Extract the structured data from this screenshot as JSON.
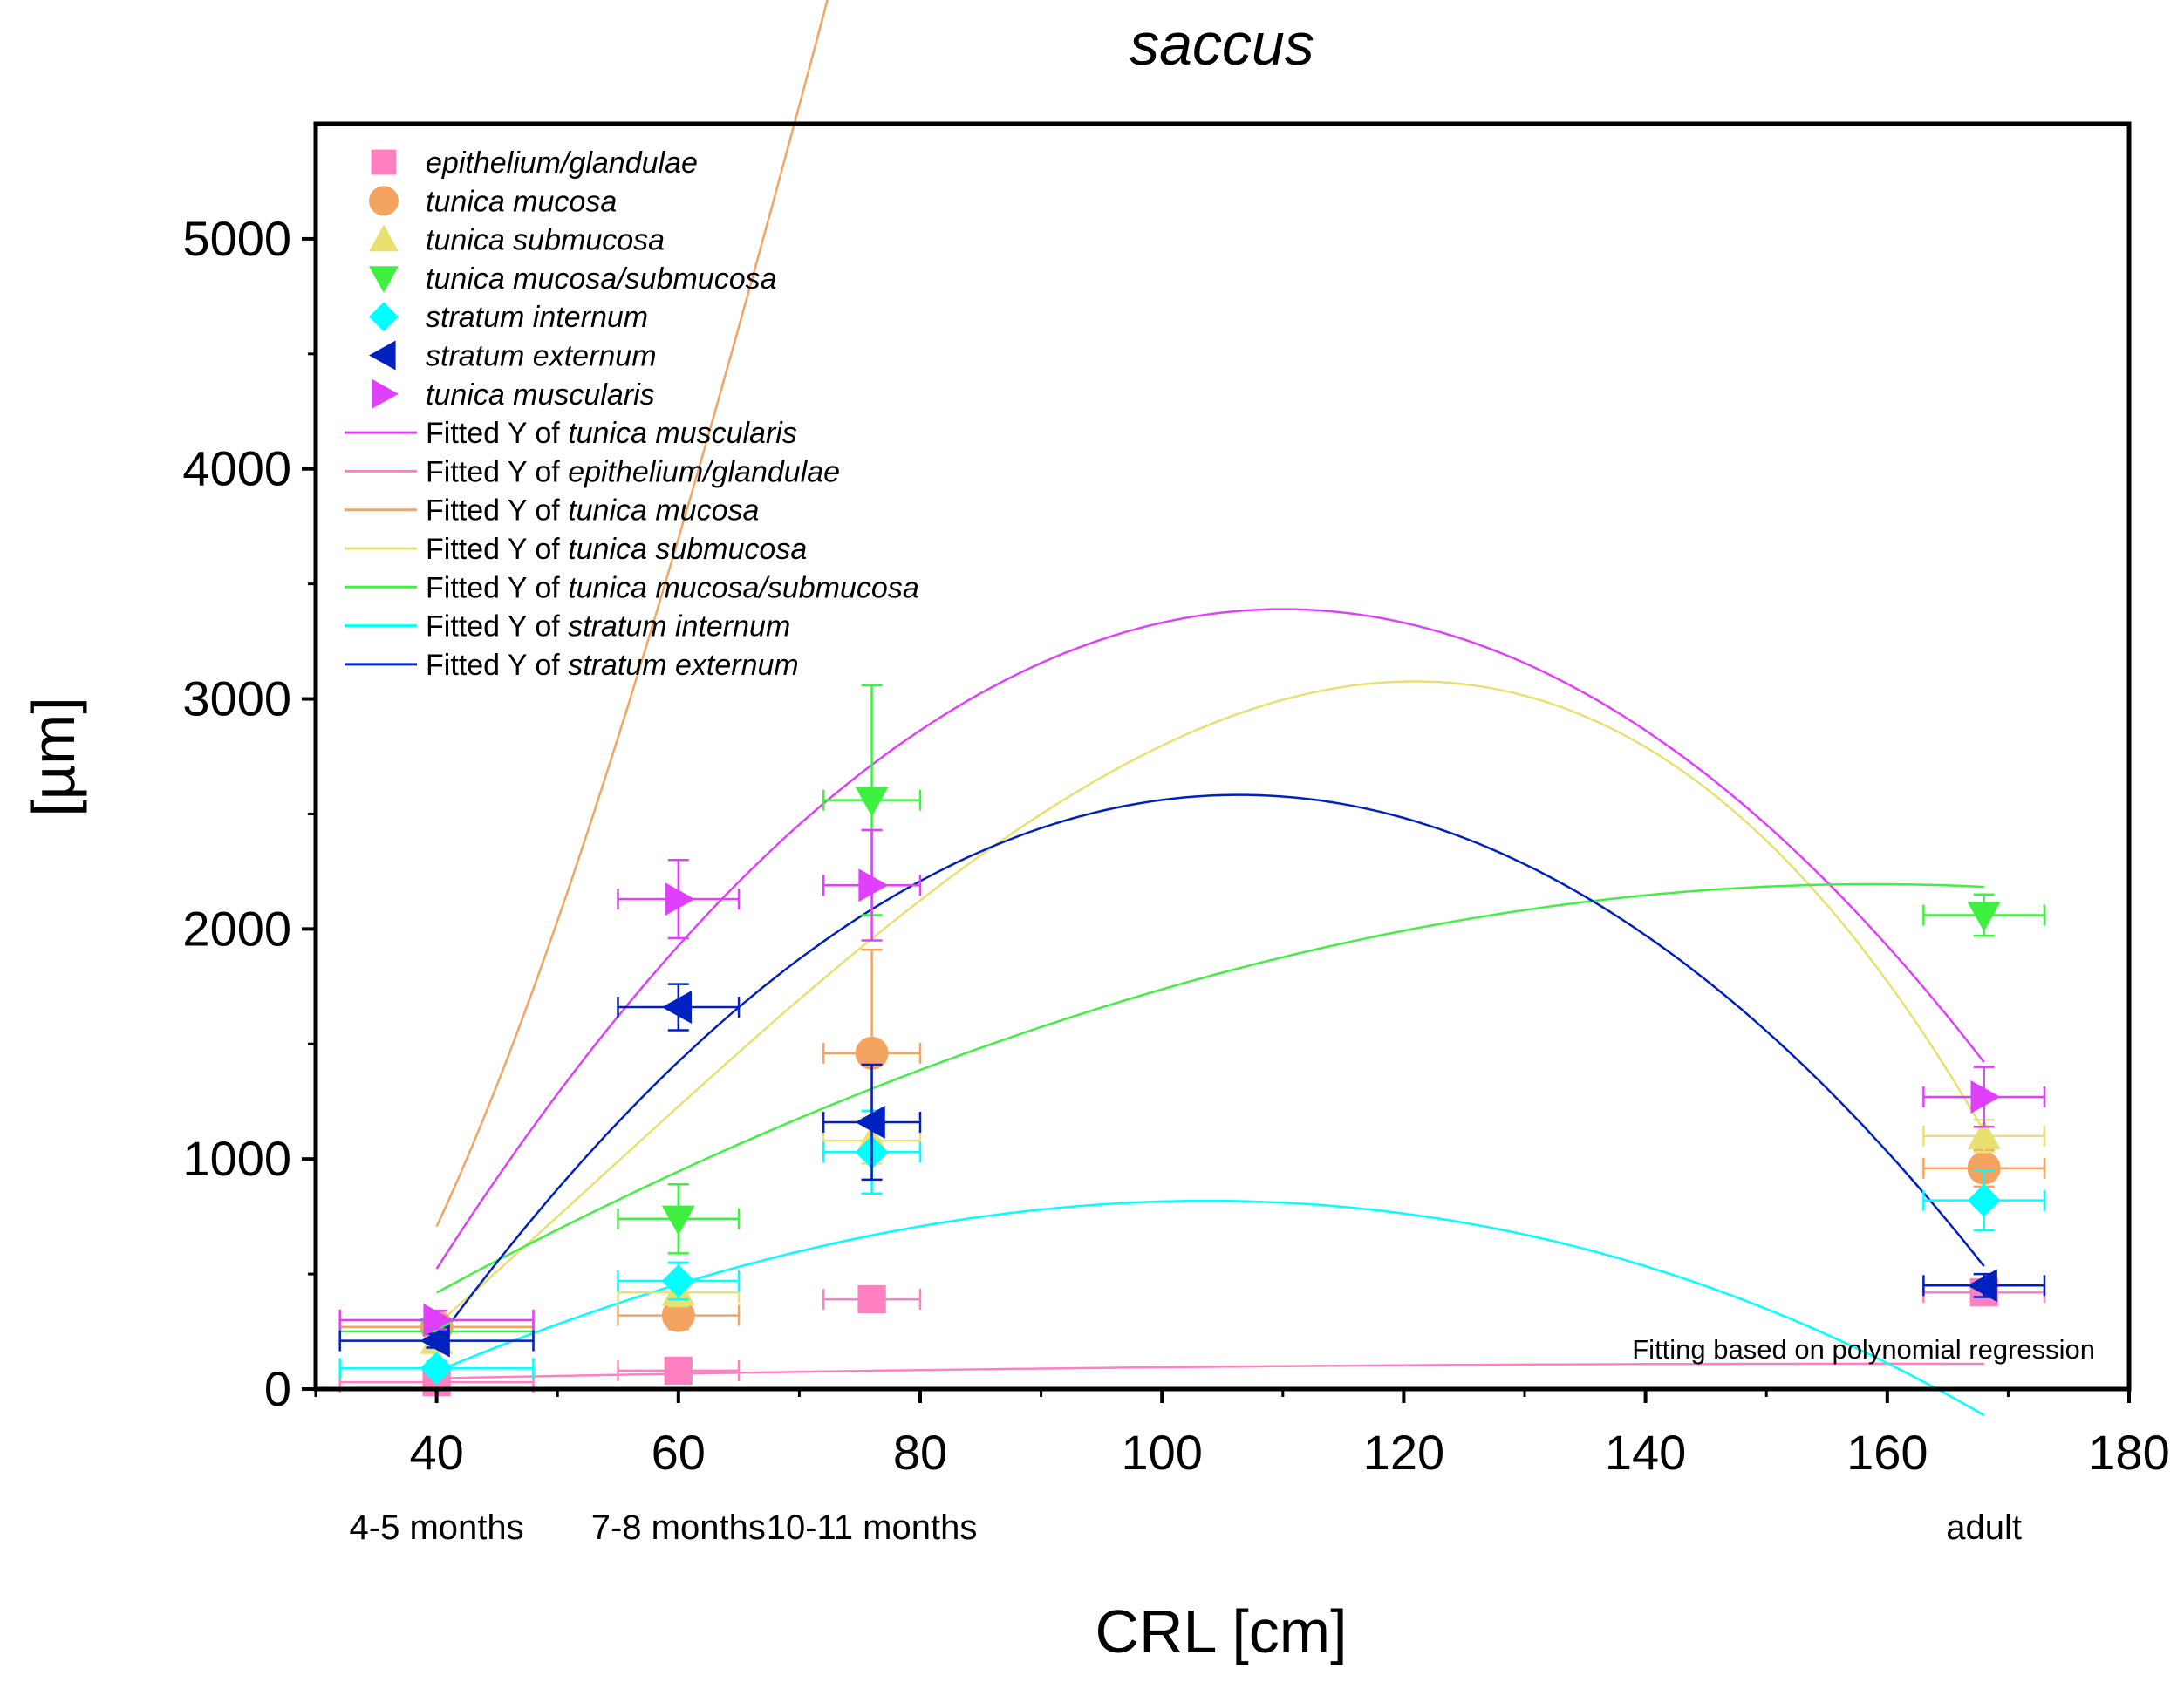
{
  "chart_data": {
    "type": "scatter",
    "title": "saccus",
    "xlabel": "CRL [cm]",
    "ylabel": "[µm]",
    "xlim": [
      30,
      180
    ],
    "ylim": [
      0,
      5500
    ],
    "x_ticks": [
      40,
      60,
      80,
      100,
      120,
      140,
      160,
      180
    ],
    "y_ticks": [
      0,
      1000,
      2000,
      3000,
      4000,
      5000
    ],
    "stage_labels": [
      {
        "x": 40,
        "label": "4-5 months"
      },
      {
        "x": 60,
        "label": "7-8 months"
      },
      {
        "x": 76,
        "label": "10-11 months"
      },
      {
        "x": 168,
        "label": "adult"
      }
    ],
    "annotation": "Fitting based on polynomial regression",
    "fit_prefix": "Fitted Y of",
    "legend_position": "top-left",
    "series": [
      {
        "name": "epithelium/glandulae",
        "marker": "square",
        "color": "#ff80c0",
        "x": [
          40,
          60,
          76,
          168
        ],
        "y": [
          30,
          80,
          390,
          420
        ],
        "xerr": [
          8,
          5,
          4,
          5
        ],
        "yerr": [
          20,
          20,
          30,
          40
        ],
        "fit": [
          -3.1,
          1.4285,
          -0.0045,
          0
        ]
      },
      {
        "name": "tunica mucosa",
        "marker": "circle",
        "color": "#f4a460",
        "x": [
          40,
          60,
          76,
          168
        ],
        "y": [
          270,
          320,
          1460,
          960
        ],
        "xerr": [
          8,
          5,
          4,
          5
        ],
        "yerr": [
          40,
          60,
          450,
          80
        ],
        "fit": [
          920.31,
          -152.72,
          4.42,
          -0.01839
        ]
      },
      {
        "name": "tunica submucosa",
        "marker": "triangle-up",
        "color": "#e8e070",
        "x": [
          40,
          60,
          76,
          168
        ],
        "y": [
          210,
          420,
          1080,
          1100
        ],
        "xerr": [
          8,
          5,
          4,
          5
        ],
        "yerr": [
          30,
          60,
          100,
          70
        ],
        "fit": [
          -1099.23,
          17.28,
          0.5712,
          -0.003544
        ]
      },
      {
        "name": "tunica mucosa/submucosa",
        "marker": "triangle-down",
        "color": "#40f040",
        "x": [
          40,
          60,
          76,
          168
        ],
        "y": [
          250,
          740,
          2560,
          2060
        ],
        "xerr": [
          8,
          5,
          4,
          5
        ],
        "yerr": [
          40,
          150,
          500,
          90
        ],
        "fit": [
          -870.16,
          35.91,
          -0.0877,
          -0.0001064
        ]
      },
      {
        "name": "stratum internum",
        "marker": "diamond",
        "color": "#00ffff",
        "x": [
          40,
          60,
          76,
          168
        ],
        "y": [
          90,
          470,
          1030,
          820
        ],
        "xerr": [
          8,
          5,
          4,
          5
        ],
        "yerr": [
          30,
          80,
          180,
          130
        ],
        "fit": [
          -997.21,
          31.32,
          -0.0979,
          -0.0003406
        ]
      },
      {
        "name": "stratum externum",
        "marker": "triangle-left",
        "color": "#0020c0",
        "x": [
          40,
          60,
          76,
          168
        ],
        "y": [
          210,
          1660,
          1160,
          450
        ],
        "xerr": [
          8,
          5,
          4,
          5
        ],
        "yerr": [
          30,
          100,
          250,
          50
        ],
        "fit": [
          -3520.0,
          114.75,
          -0.5394,
          0
        ]
      },
      {
        "name": "tunica muscularis",
        "marker": "triangle-right",
        "color": "#e040fb",
        "x": [
          40,
          60,
          76,
          168
        ],
        "y": [
          300,
          2130,
          2190,
          1270
        ],
        "xerr": [
          8,
          5,
          4,
          5
        ],
        "yerr": [
          40,
          170,
          240,
          130
        ],
        "fit": [
          -3690.48,
          128.74,
          -0.5852,
          0
        ]
      }
    ],
    "fit_order": [
      "tunica muscularis",
      "epithelium/glandulae",
      "tunica mucosa",
      "tunica submucosa",
      "tunica mucosa/submucosa",
      "stratum internum",
      "stratum externum"
    ],
    "fit_range": [
      40,
      168
    ]
  }
}
